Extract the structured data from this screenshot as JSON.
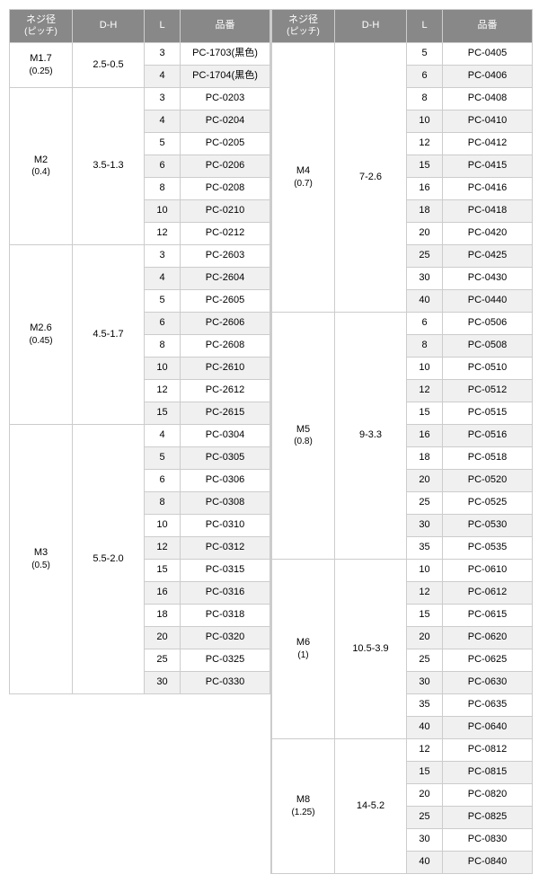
{
  "headers": {
    "screw": "ネジ径",
    "screwSub": "(ピッチ)",
    "dh": "D-H",
    "l": "L",
    "part": "品番"
  },
  "left": [
    {
      "screw": "M1.7",
      "pitch": "(0.25)",
      "dh": "2.5-0.5",
      "rows": [
        {
          "l": "3",
          "p": "PC-1703(黒色)",
          "s": 0
        },
        {
          "l": "4",
          "p": "PC-1704(黒色)",
          "s": 1
        }
      ]
    },
    {
      "screw": "M2",
      "pitch": "(0.4)",
      "dh": "3.5-1.3",
      "rows": [
        {
          "l": "3",
          "p": "PC-0203",
          "s": 0
        },
        {
          "l": "4",
          "p": "PC-0204",
          "s": 1
        },
        {
          "l": "5",
          "p": "PC-0205",
          "s": 0
        },
        {
          "l": "6",
          "p": "PC-0206",
          "s": 1
        },
        {
          "l": "8",
          "p": "PC-0208",
          "s": 0
        },
        {
          "l": "10",
          "p": "PC-0210",
          "s": 1
        },
        {
          "l": "12",
          "p": "PC-0212",
          "s": 0
        }
      ]
    },
    {
      "screw": "M2.6",
      "pitch": "(0.45)",
      "dh": "4.5-1.7",
      "rows": [
        {
          "l": "3",
          "p": "PC-2603",
          "s": 0
        },
        {
          "l": "4",
          "p": "PC-2604",
          "s": 1
        },
        {
          "l": "5",
          "p": "PC-2605",
          "s": 0
        },
        {
          "l": "6",
          "p": "PC-2606",
          "s": 1
        },
        {
          "l": "8",
          "p": "PC-2608",
          "s": 0
        },
        {
          "l": "10",
          "p": "PC-2610",
          "s": 1
        },
        {
          "l": "12",
          "p": "PC-2612",
          "s": 0
        },
        {
          "l": "15",
          "p": "PC-2615",
          "s": 1
        }
      ]
    },
    {
      "screw": "M3",
      "pitch": "(0.5)",
      "dh": "5.5-2.0",
      "rows": [
        {
          "l": "4",
          "p": "PC-0304",
          "s": 0
        },
        {
          "l": "5",
          "p": "PC-0305",
          "s": 1
        },
        {
          "l": "6",
          "p": "PC-0306",
          "s": 0
        },
        {
          "l": "8",
          "p": "PC-0308",
          "s": 1
        },
        {
          "l": "10",
          "p": "PC-0310",
          "s": 0
        },
        {
          "l": "12",
          "p": "PC-0312",
          "s": 1
        },
        {
          "l": "15",
          "p": "PC-0315",
          "s": 0
        },
        {
          "l": "16",
          "p": "PC-0316",
          "s": 1
        },
        {
          "l": "18",
          "p": "PC-0318",
          "s": 0
        },
        {
          "l": "20",
          "p": "PC-0320",
          "s": 1
        },
        {
          "l": "25",
          "p": "PC-0325",
          "s": 0
        },
        {
          "l": "30",
          "p": "PC-0330",
          "s": 1
        }
      ]
    }
  ],
  "right": [
    {
      "screw": "M4",
      "pitch": "(0.7)",
      "dh": "7-2.6",
      "rows": [
        {
          "l": "5",
          "p": "PC-0405",
          "s": 0
        },
        {
          "l": "6",
          "p": "PC-0406",
          "s": 1
        },
        {
          "l": "8",
          "p": "PC-0408",
          "s": 0
        },
        {
          "l": "10",
          "p": "PC-0410",
          "s": 1
        },
        {
          "l": "12",
          "p": "PC-0412",
          "s": 0
        },
        {
          "l": "15",
          "p": "PC-0415",
          "s": 1
        },
        {
          "l": "16",
          "p": "PC-0416",
          "s": 0
        },
        {
          "l": "18",
          "p": "PC-0418",
          "s": 1
        },
        {
          "l": "20",
          "p": "PC-0420",
          "s": 0
        },
        {
          "l": "25",
          "p": "PC-0425",
          "s": 1
        },
        {
          "l": "30",
          "p": "PC-0430",
          "s": 0
        },
        {
          "l": "40",
          "p": "PC-0440",
          "s": 1
        }
      ]
    },
    {
      "screw": "M5",
      "pitch": "(0.8)",
      "dh": "9-3.3",
      "rows": [
        {
          "l": "6",
          "p": "PC-0506",
          "s": 0
        },
        {
          "l": "8",
          "p": "PC-0508",
          "s": 1
        },
        {
          "l": "10",
          "p": "PC-0510",
          "s": 0
        },
        {
          "l": "12",
          "p": "PC-0512",
          "s": 1
        },
        {
          "l": "15",
          "p": "PC-0515",
          "s": 0
        },
        {
          "l": "16",
          "p": "PC-0516",
          "s": 1
        },
        {
          "l": "18",
          "p": "PC-0518",
          "s": 0
        },
        {
          "l": "20",
          "p": "PC-0520",
          "s": 1
        },
        {
          "l": "25",
          "p": "PC-0525",
          "s": 0
        },
        {
          "l": "30",
          "p": "PC-0530",
          "s": 1
        },
        {
          "l": "35",
          "p": "PC-0535",
          "s": 0
        }
      ]
    },
    {
      "screw": "M6",
      "pitch": "(1)",
      "dh": "10.5-3.9",
      "rows": [
        {
          "l": "10",
          "p": "PC-0610",
          "s": 0
        },
        {
          "l": "12",
          "p": "PC-0612",
          "s": 1
        },
        {
          "l": "15",
          "p": "PC-0615",
          "s": 0
        },
        {
          "l": "20",
          "p": "PC-0620",
          "s": 1
        },
        {
          "l": "25",
          "p": "PC-0625",
          "s": 0
        },
        {
          "l": "30",
          "p": "PC-0630",
          "s": 1
        },
        {
          "l": "35",
          "p": "PC-0635",
          "s": 0
        },
        {
          "l": "40",
          "p": "PC-0640",
          "s": 1
        }
      ]
    },
    {
      "screw": "M8",
      "pitch": "(1.25)",
      "dh": "14-5.2",
      "rows": [
        {
          "l": "12",
          "p": "PC-0812",
          "s": 0
        },
        {
          "l": "15",
          "p": "PC-0815",
          "s": 1
        },
        {
          "l": "20",
          "p": "PC-0820",
          "s": 0
        },
        {
          "l": "25",
          "p": "PC-0825",
          "s": 1
        },
        {
          "l": "30",
          "p": "PC-0830",
          "s": 0
        },
        {
          "l": "40",
          "p": "PC-0840",
          "s": 1
        }
      ]
    }
  ]
}
